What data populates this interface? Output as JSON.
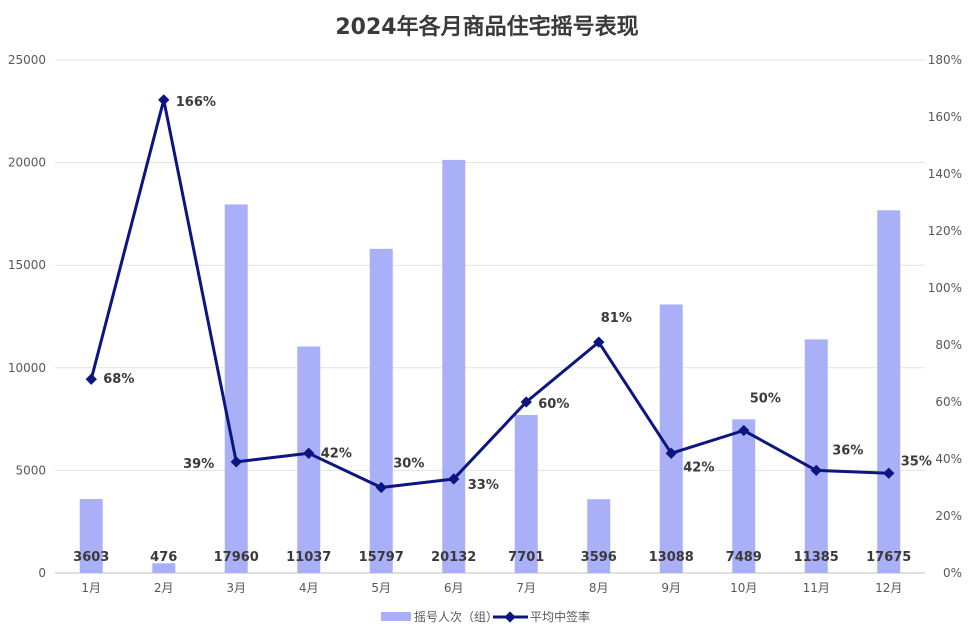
{
  "chart_data": {
    "type": "bar",
    "title": "2024年各月商品住宅摇号表现",
    "categories": [
      "1月",
      "2月",
      "3月",
      "4月",
      "5月",
      "6月",
      "7月",
      "8月",
      "9月",
      "10月",
      "11月",
      "12月"
    ],
    "series": [
      {
        "name": "摇号人次（组）",
        "type": "bar",
        "axis": "left",
        "color": "#aab0f7",
        "values": [
          3603,
          476,
          17960,
          11037,
          15797,
          20132,
          7701,
          3596,
          13088,
          7489,
          11385,
          17675
        ]
      },
      {
        "name": "平均中签率",
        "type": "line",
        "axis": "right",
        "color": "#0d1580",
        "values": [
          68,
          166,
          39,
          42,
          30,
          33,
          60,
          81,
          42,
          50,
          36,
          35
        ],
        "labels": [
          "68%",
          "166%",
          "39%",
          "42%",
          "30%",
          "33%",
          "60%",
          "81%",
          "42%",
          "50%",
          "36%",
          "35%"
        ]
      }
    ],
    "y_left": {
      "min": 0,
      "max": 25000,
      "ticks": [
        "0",
        "5000",
        "10000",
        "15000",
        "20000",
        "25000"
      ]
    },
    "y_right": {
      "min": 0,
      "max": 180,
      "ticks": [
        "0%",
        "20%",
        "40%",
        "60%",
        "80%",
        "100%",
        "120%",
        "140%",
        "160%",
        "180%"
      ]
    },
    "grid": true,
    "legend_position": "bottom"
  }
}
